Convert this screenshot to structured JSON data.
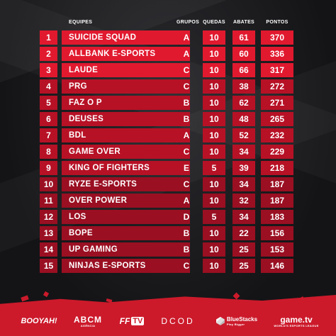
{
  "headers": {
    "equipes": "EQUIPES",
    "grupos": "GRUPOS",
    "quedas": "QUEDAS",
    "abates": "ABATES",
    "pontos": "PONTOS"
  },
  "rows": [
    {
      "pos": "1",
      "name": "SUICIDE SQUAD",
      "group": "A",
      "quedas": "10",
      "abates": "61",
      "pontos": "370"
    },
    {
      "pos": "2",
      "name": "ALLBANK E-SPORTS",
      "group": "A",
      "quedas": "10",
      "abates": "60",
      "pontos": "336"
    },
    {
      "pos": "3",
      "name": "LAUDE",
      "group": "C",
      "quedas": "10",
      "abates": "66",
      "pontos": "317"
    },
    {
      "pos": "4",
      "name": "PRG",
      "group": "C",
      "quedas": "10",
      "abates": "38",
      "pontos": "272"
    },
    {
      "pos": "5",
      "name": "FAZ O P",
      "group": "B",
      "quedas": "10",
      "abates": "62",
      "pontos": "271"
    },
    {
      "pos": "6",
      "name": "DEUSES",
      "group": "B",
      "quedas": "10",
      "abates": "48",
      "pontos": "265"
    },
    {
      "pos": "7",
      "name": "BDL",
      "group": "A",
      "quedas": "10",
      "abates": "52",
      "pontos": "232"
    },
    {
      "pos": "8",
      "name": "GAME OVER",
      "group": "C",
      "quedas": "10",
      "abates": "34",
      "pontos": "229"
    },
    {
      "pos": "9",
      "name": "KING OF FIGHTERS",
      "group": "E",
      "quedas": "5",
      "abates": "39",
      "pontos": "218"
    },
    {
      "pos": "10",
      "name": "RYZE E-SPORTS",
      "group": "C",
      "quedas": "10",
      "abates": "34",
      "pontos": "187"
    },
    {
      "pos": "11",
      "name": "OVER POWER",
      "group": "A",
      "quedas": "10",
      "abates": "32",
      "pontos": "187"
    },
    {
      "pos": "12",
      "name": "LOS",
      "group": "D",
      "quedas": "5",
      "abates": "34",
      "pontos": "183"
    },
    {
      "pos": "13",
      "name": "BOPE",
      "group": "B",
      "quedas": "10",
      "abates": "22",
      "pontos": "156"
    },
    {
      "pos": "14",
      "name": "UP GAMING",
      "group": "B",
      "quedas": "10",
      "abates": "25",
      "pontos": "153"
    },
    {
      "pos": "15",
      "name": "NINJAS E-SPORTS",
      "group": "C",
      "quedas": "10",
      "abates": "25",
      "pontos": "146"
    }
  ],
  "sponsors": {
    "booyah": "BOOYAH!",
    "abcm": "ABCM",
    "abcm_sub": "AGÊNCIA",
    "fftv_ff": "FF",
    "fftv_tv": "TV",
    "dcod": "DCOD",
    "bluestacks": "BlueStacks",
    "bluestacks_sub": "Play Bigger",
    "gametv": "game.tv",
    "gametv_sub": "WORLD'S ESPORTS LEAGUE"
  },
  "colors": {
    "row_top": "#e1192f",
    "row_mid": "#b71126",
    "row_low": "#9a0f22",
    "footer": "#cc1a2b"
  }
}
